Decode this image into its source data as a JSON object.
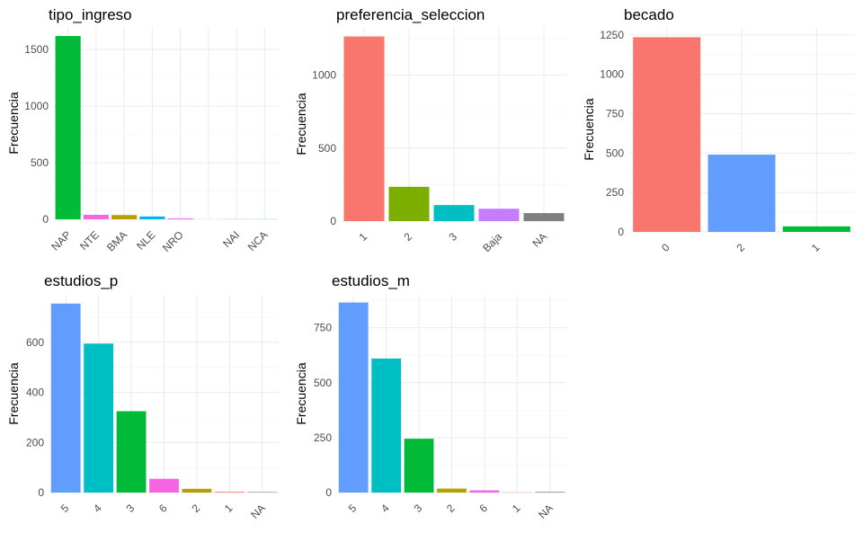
{
  "chart_data": [
    {
      "type": "bar",
      "title": "tipo_ingreso",
      "ylabel": "Frecuencia",
      "xlabel": "",
      "categories": [
        "NAP",
        "NTE",
        "BMA",
        "NLE",
        "NRO",
        "",
        "NAI",
        "NCA"
      ],
      "values": [
        1620,
        40,
        38,
        25,
        8,
        0,
        1,
        1
      ],
      "colors": [
        "#00BA38",
        "#F564E3",
        "#B79F00",
        "#00B4EF",
        "#E76BF3",
        "#A58AFF",
        "#FF61C3",
        "#00C0AF"
      ],
      "ylim": [
        0,
        1700
      ],
      "yticks": [
        0,
        500,
        1000,
        1500
      ],
      "grid": true
    },
    {
      "type": "bar",
      "title": "preferencia_seleccion",
      "ylabel": "Frecuencia",
      "xlabel": "",
      "categories": [
        "1",
        "2",
        "3",
        "Baja",
        "NA"
      ],
      "values": [
        1265,
        235,
        110,
        85,
        55
      ],
      "colors": [
        "#F8766D",
        "#7CAE00",
        "#00BFC4",
        "#C77CFF",
        "#7F7F7F"
      ],
      "ylim": [
        0,
        1330
      ],
      "yticks": [
        0,
        500,
        1000
      ],
      "grid": true
    },
    {
      "type": "bar",
      "title": "becado",
      "ylabel": "Frecuencia",
      "xlabel": "",
      "categories": [
        "0",
        "2",
        "1"
      ],
      "values": [
        1235,
        490,
        35
      ],
      "colors": [
        "#F8766D",
        "#619CFF",
        "#00BA38"
      ],
      "ylim": [
        0,
        1300
      ],
      "yticks": [
        0,
        250,
        500,
        750,
        1000,
        1250
      ],
      "grid": true
    },
    {
      "type": "bar",
      "title": "estudios_p",
      "ylabel": "Frecuencia",
      "xlabel": "",
      "categories": [
        "5",
        "4",
        "3",
        "6",
        "2",
        "1",
        "NA"
      ],
      "values": [
        755,
        595,
        325,
        55,
        15,
        3,
        2
      ],
      "colors": [
        "#619CFF",
        "#00BFC4",
        "#00BA38",
        "#F564E3",
        "#B79F00",
        "#F8766D",
        "#7F7F7F"
      ],
      "ylim": [
        0,
        790
      ],
      "yticks": [
        0,
        200,
        400,
        600
      ],
      "grid": true
    },
    {
      "type": "bar",
      "title": "estudios_m",
      "ylabel": "Frecuencia",
      "xlabel": "",
      "categories": [
        "5",
        "4",
        "3",
        "2",
        "6",
        "1",
        "NA"
      ],
      "values": [
        865,
        610,
        245,
        18,
        10,
        1,
        3
      ],
      "colors": [
        "#619CFF",
        "#00BFC4",
        "#00BA38",
        "#B79F00",
        "#F564E3",
        "#F8766D",
        "#7F7F7F"
      ],
      "ylim": [
        0,
        900
      ],
      "yticks": [
        0,
        250,
        500,
        750
      ],
      "grid": true
    }
  ]
}
